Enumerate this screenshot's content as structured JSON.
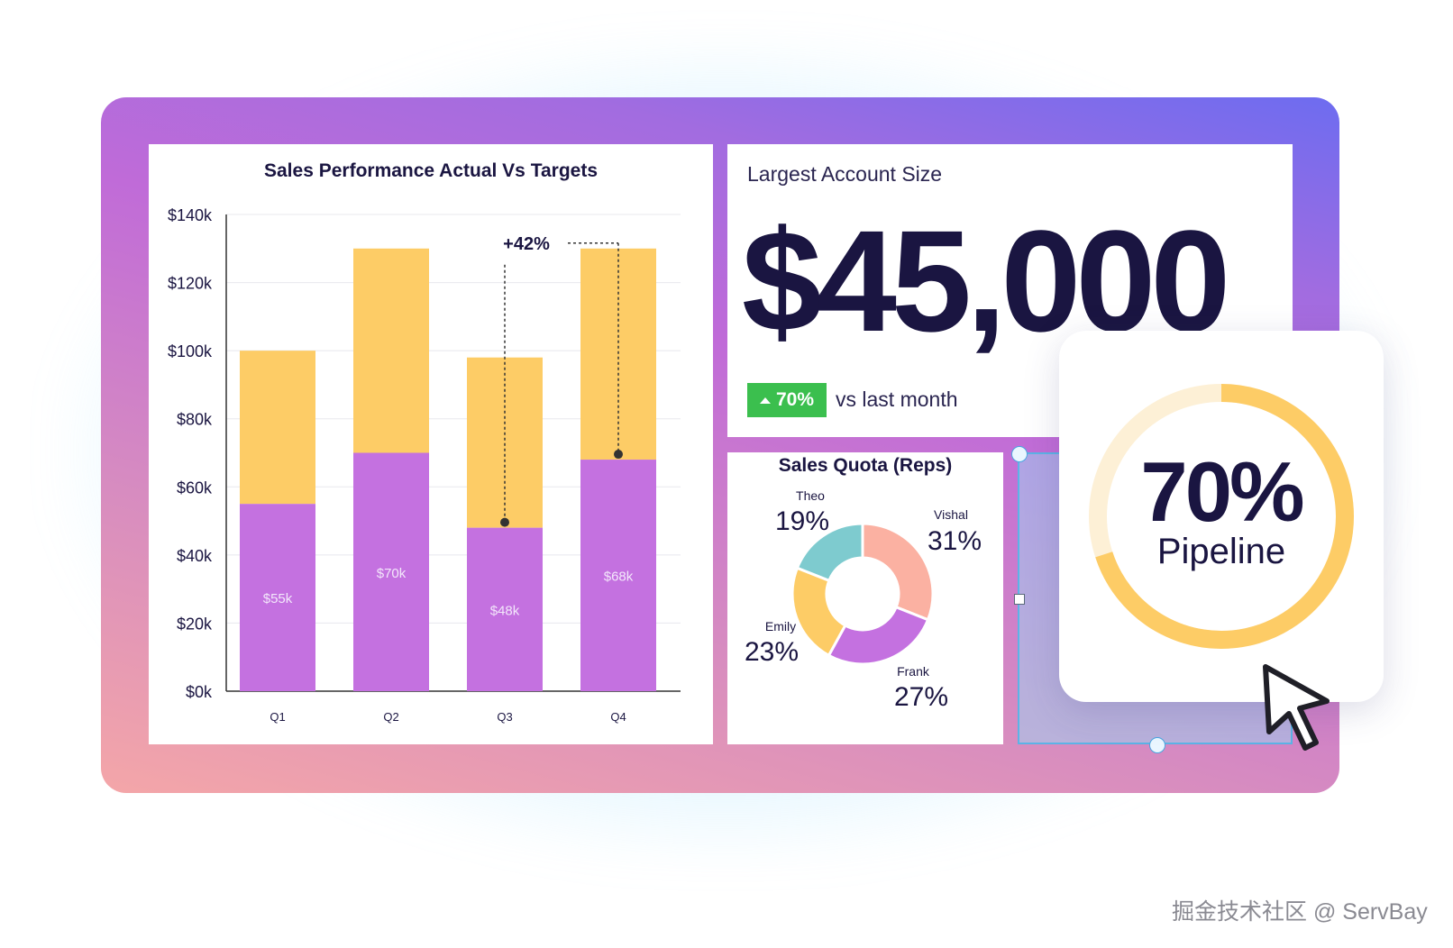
{
  "chart_data": [
    {
      "type": "bar",
      "title": "Sales Performance Actual Vs Targets",
      "categories": [
        "Q1",
        "Q2",
        "Q3",
        "Q4"
      ],
      "series": [
        {
          "values": [
            55,
            70,
            48,
            68
          ]
        },
        {
          "values": [
            100,
            130,
            98,
            130
          ]
        }
      ],
      "data_labels": [
        "$55k",
        "$70k",
        "$48k",
        "$68k"
      ],
      "y_ticks": [
        "$0k",
        "$20k",
        "$40k",
        "$60k",
        "$80k",
        "$100k",
        "$120k",
        "$140k"
      ],
      "ylim": [
        0,
        140
      ],
      "grid": true,
      "annotation": {
        "text": "+42%",
        "from": "Q3",
        "to": "Q4"
      },
      "colors": {
        "actual": "#c471e0",
        "target": "#fdcc66"
      }
    },
    {
      "type": "pie",
      "title": "Sales Quota (Reps)",
      "slices": [
        {
          "name": "Vishal",
          "label": "31%",
          "value": 31,
          "color": "#fbb1a2"
        },
        {
          "name": "Frank",
          "label": "27%",
          "value": 27,
          "color": "#c471e0"
        },
        {
          "name": "Emily",
          "label": "23%",
          "value": 23,
          "color": "#fdcc66"
        },
        {
          "name": "Theo",
          "label": "19%",
          "value": 19,
          "color": "#7ecbcf"
        }
      ]
    }
  ],
  "account": {
    "label": "Largest Account Size",
    "value": "$45,000",
    "change": "70%",
    "change_text": "vs last month",
    "badge_color": "#3bbf4e"
  },
  "pipeline": {
    "percent": "70%",
    "label": "Pipeline",
    "progress": 0.7,
    "color": "#fdcc66"
  },
  "watermark": "掘金技术社区 @ ServBay",
  "icons": {
    "cursor": "arrow-cursor-icon",
    "up": "triangle-up-icon"
  }
}
